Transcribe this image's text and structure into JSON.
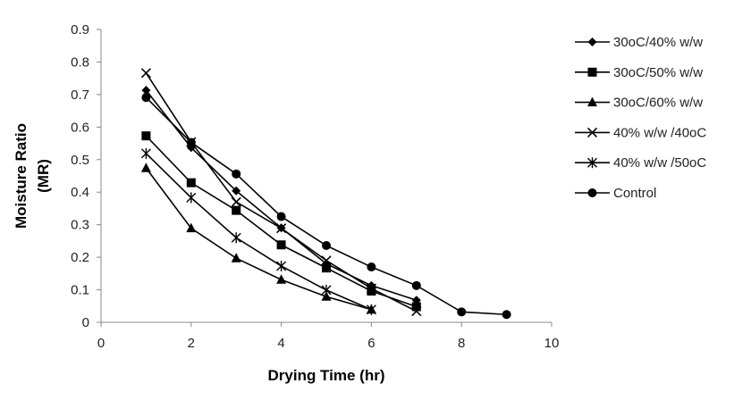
{
  "chart_data": {
    "type": "line",
    "title": "",
    "xlabel": "Drying Time (hr)",
    "ylabel_lines": [
      "Moisture Ratio",
      "(MR)"
    ],
    "xlim": [
      0,
      10
    ],
    "ylim": [
      0,
      0.9
    ],
    "xticks": [
      0,
      2,
      4,
      6,
      8,
      10
    ],
    "yticks": [
      0,
      0.1,
      0.2,
      0.3,
      0.4,
      0.5,
      0.6,
      0.7,
      0.8,
      0.9
    ],
    "xtick_labels": [
      "0",
      "2",
      "4",
      "6",
      "8",
      "10"
    ],
    "ytick_labels": [
      "0",
      "0.1",
      "0.2",
      "0.3",
      "0.4",
      "0.5",
      "0.6",
      "0.7",
      "0.8",
      "0.9"
    ],
    "grid": false,
    "legend_position": "right",
    "series": [
      {
        "name": "30oC/40% w/w",
        "marker": "diamond",
        "x": [
          1,
          2,
          3,
          4,
          5,
          6,
          7
        ],
        "y": [
          0.713,
          0.537,
          0.404,
          0.29,
          0.18,
          0.113,
          0.068
        ]
      },
      {
        "name": "30oC/50% w/w",
        "marker": "square",
        "x": [
          1,
          2,
          3,
          4,
          5,
          6,
          7
        ],
        "y": [
          0.573,
          0.429,
          0.344,
          0.238,
          0.167,
          0.096,
          0.048
        ]
      },
      {
        "name": "30oC/60% w/w",
        "marker": "triangle",
        "x": [
          1,
          2,
          3,
          4,
          5,
          6
        ],
        "y": [
          0.474,
          0.289,
          0.197,
          0.131,
          0.079,
          0.039
        ]
      },
      {
        "name": "40% w/w /40oC",
        "marker": "x",
        "x": [
          1,
          2,
          3,
          4,
          5,
          6,
          7
        ],
        "y": [
          0.766,
          0.554,
          0.37,
          0.289,
          0.19,
          0.104,
          0.034
        ]
      },
      {
        "name": "40% w/w /50oC",
        "marker": "star",
        "x": [
          1,
          2,
          3,
          4,
          5,
          6
        ],
        "y": [
          0.519,
          0.383,
          0.26,
          0.173,
          0.099,
          0.039
        ]
      },
      {
        "name": "Control",
        "marker": "circle",
        "x": [
          1,
          2,
          3,
          4,
          5,
          6,
          7,
          8,
          9
        ],
        "y": [
          0.691,
          0.553,
          0.456,
          0.325,
          0.236,
          0.17,
          0.113,
          0.032,
          0.024
        ]
      }
    ],
    "colors": {
      "line": "#000000",
      "axis": "#888888"
    }
  }
}
